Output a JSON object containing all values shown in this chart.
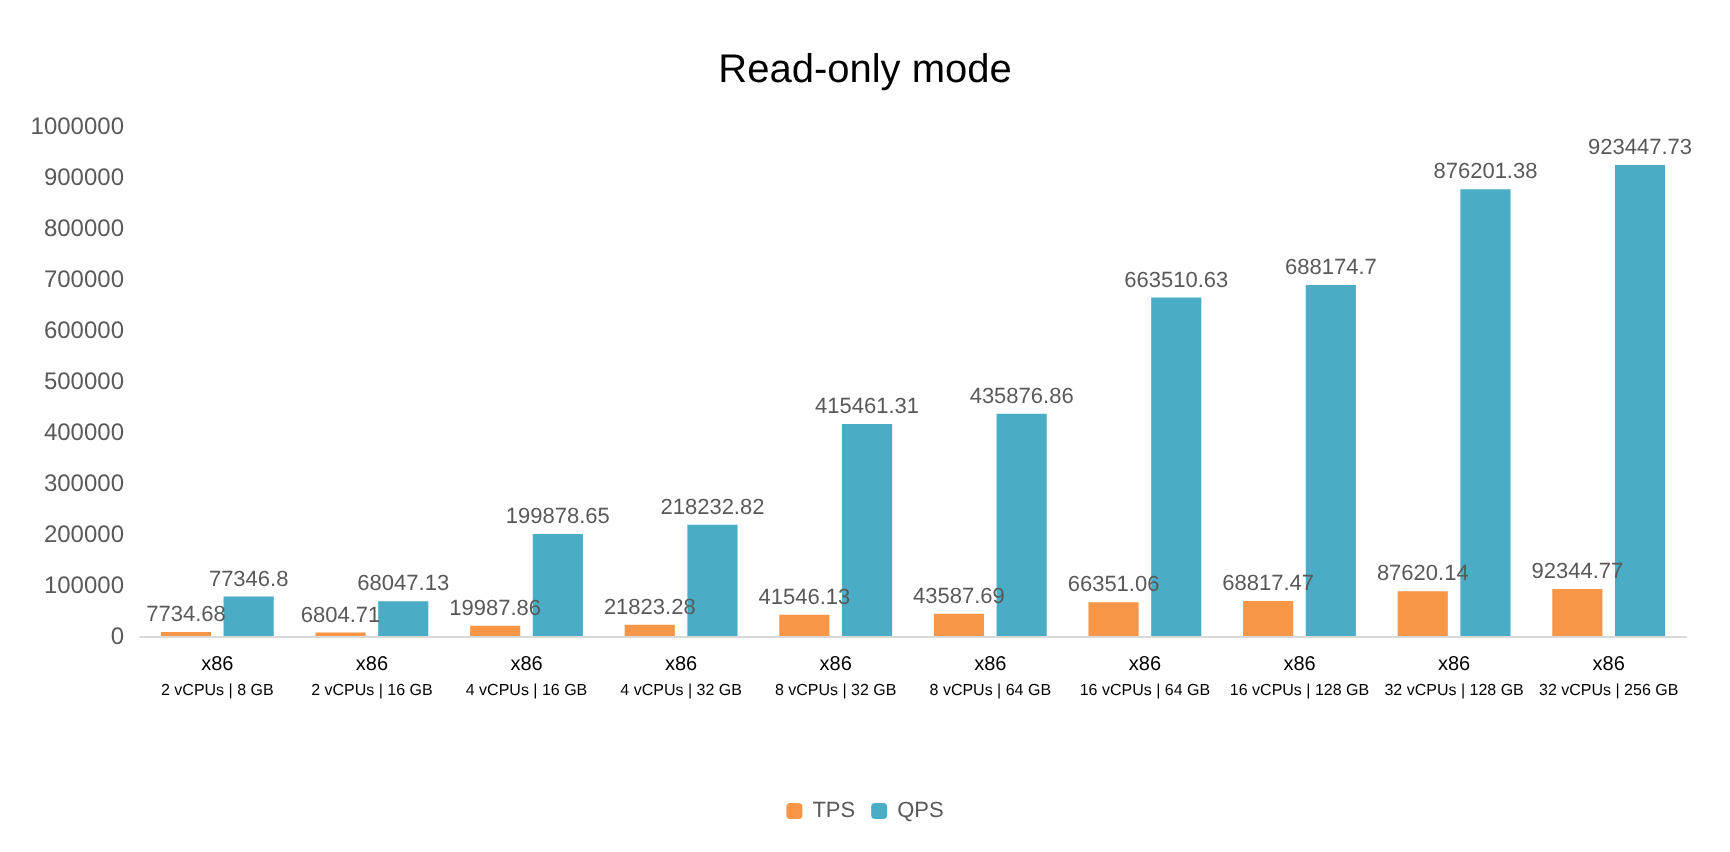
{
  "chart_data": {
    "type": "bar",
    "title": "Read-only mode",
    "categories": [
      "x86\n2 vCPUs | 8 GB",
      "x86\n2 vCPUs | 16 GB",
      "x86\n4 vCPUs | 16 GB",
      "x86\n4 vCPUs | 32 GB",
      "x86\n8 vCPUs | 32 GB",
      "x86\n8 vCPUs | 64 GB",
      "x86\n16 vCPUs | 64 GB",
      "x86\n16 vCPUs | 128 GB",
      "x86\n32 vCPUs | 128 GB",
      "x86\n32 vCPUs | 256 GB"
    ],
    "series": [
      {
        "name": "TPS",
        "color": "#f79646",
        "values": [
          7734.68,
          6804.71,
          19987.86,
          21823.28,
          41546.13,
          43587.69,
          66351.06,
          68817.47,
          87620.14,
          92344.77
        ]
      },
      {
        "name": "QPS",
        "color": "#4bacc6",
        "values": [
          77346.8,
          68047.13,
          199878.65,
          218232.82,
          415461.31,
          435876.86,
          663510.63,
          688174.7,
          876201.38,
          923447.73
        ]
      }
    ],
    "ylim": [
      0,
      1000000
    ],
    "yticks": [
      0,
      100000,
      200000,
      300000,
      400000,
      500000,
      600000,
      700000,
      800000,
      900000,
      1000000
    ],
    "grid": false,
    "legend": "bottom",
    "data_labels": true
  }
}
